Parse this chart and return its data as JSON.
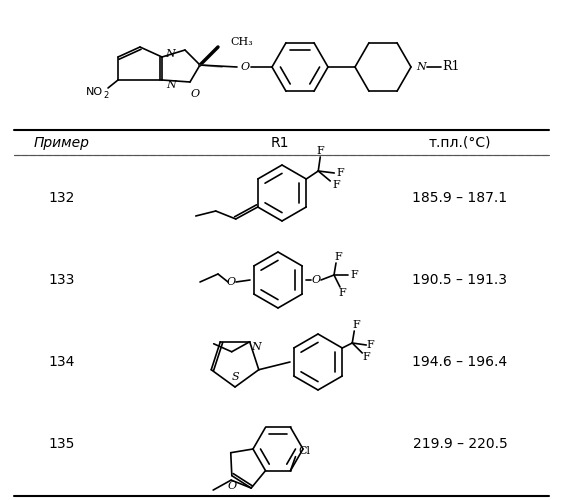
{
  "rows": [
    {
      "example": "132",
      "mp": "185.9 – 187.1"
    },
    {
      "example": "133",
      "mp": "190.5 – 191.3"
    },
    {
      "example": "134",
      "mp": "194.6 – 196.4"
    },
    {
      "example": "135",
      "mp": "219.9 – 220.5"
    }
  ],
  "bg_color": "#ffffff",
  "text_color": "#000000",
  "fig_width": 5.63,
  "fig_height": 5.0,
  "dpi": 100
}
